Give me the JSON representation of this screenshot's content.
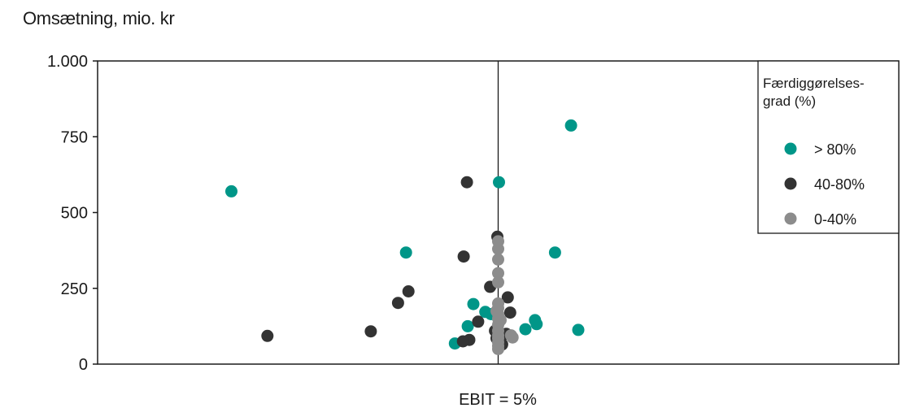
{
  "chart_data": {
    "type": "scatter",
    "title": "Omsætning, mio. kr",
    "xlabel": "EBIT = 5%",
    "ylabel": "",
    "xlim": [
      0,
      100
    ],
    "ylim": [
      0,
      1000
    ],
    "yticks": [
      0,
      250,
      500,
      750,
      1000
    ],
    "ytick_labels": [
      "0",
      "250",
      "500",
      "750",
      "1.000"
    ],
    "reference_x": 50,
    "grid": false,
    "legend": {
      "title_lines": [
        "Færdiggørelses-",
        "grad (%)"
      ],
      "placement": "top-right"
    },
    "series": [
      {
        "name": "> 80%",
        "color": "#009688",
        "points": [
          [
            16.7,
            570
          ],
          [
            38.5,
            368
          ],
          [
            44.6,
            68
          ],
          [
            46.2,
            125
          ],
          [
            46.9,
            198
          ],
          [
            48.4,
            172
          ],
          [
            49.1,
            165
          ],
          [
            50.1,
            600
          ],
          [
            53.4,
            115
          ],
          [
            54.6,
            145
          ],
          [
            54.8,
            132
          ],
          [
            57.1,
            368
          ],
          [
            59.1,
            787
          ],
          [
            60.0,
            113
          ]
        ]
      },
      {
        "name": "40-80%",
        "color": "#333333",
        "points": [
          [
            21.2,
            93
          ],
          [
            34.1,
            108
          ],
          [
            37.5,
            202
          ],
          [
            38.8,
            240
          ],
          [
            45.7,
            355
          ],
          [
            46.1,
            600
          ],
          [
            46.4,
            80
          ],
          [
            45.6,
            75
          ],
          [
            47.5,
            140
          ],
          [
            49.0,
            255
          ],
          [
            49.9,
            420
          ],
          [
            51.2,
            220
          ],
          [
            51.5,
            170
          ],
          [
            49.6,
            110
          ],
          [
            49.8,
            85
          ],
          [
            51.0,
            100
          ],
          [
            50.5,
            65
          ]
        ]
      },
      {
        "name": "0-40%",
        "color": "#8c8c8c",
        "points": [
          [
            50.0,
            405
          ],
          [
            50.0,
            380
          ],
          [
            50.0,
            345
          ],
          [
            50.0,
            300
          ],
          [
            50.0,
            270
          ],
          [
            50.0,
            200
          ],
          [
            50.0,
            185
          ],
          [
            50.0,
            165
          ],
          [
            50.0,
            150
          ],
          [
            50.0,
            130
          ],
          [
            50.0,
            110
          ],
          [
            50.0,
            95
          ],
          [
            50.0,
            85
          ],
          [
            50.0,
            72
          ],
          [
            50.0,
            60
          ],
          [
            50.0,
            50
          ],
          [
            50.3,
            145
          ],
          [
            49.8,
            175
          ],
          [
            51.6,
            95
          ],
          [
            51.8,
            88
          ]
        ]
      }
    ]
  }
}
